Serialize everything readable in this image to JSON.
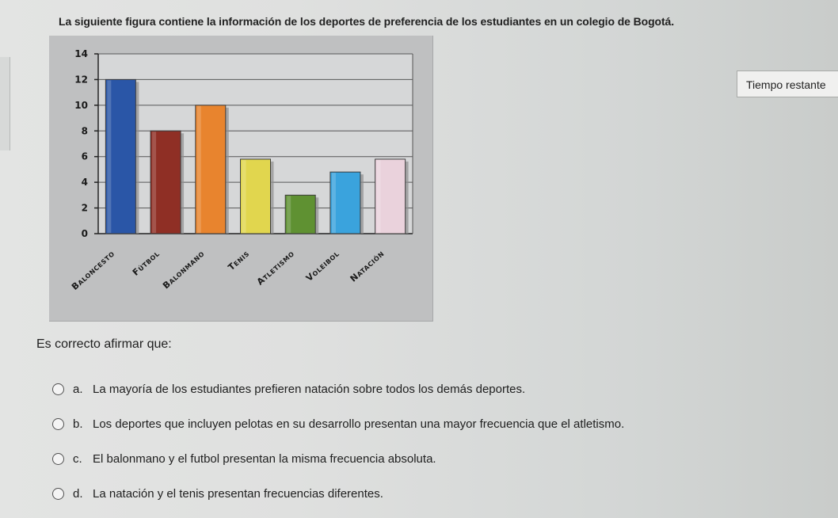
{
  "question": {
    "text": "La siguiente figura contiene la información de los deportes de preferencia de los estudiantes en un colegio de Bogotá."
  },
  "timer": {
    "label": "Tiempo restante"
  },
  "prompt": {
    "text": "Es correcto afirmar que:"
  },
  "options": [
    {
      "letter": "a.",
      "text": "La mayoría de los estudiantes prefieren natación sobre todos los demás deportes.",
      "selected": false
    },
    {
      "letter": "b.",
      "text": "Los deportes que incluyen pelotas en su desarrollo presentan una mayor frecuencia que el atletismo.",
      "selected": false
    },
    {
      "letter": "c.",
      "text": "El balonmano y el futbol presentan la misma frecuencia absoluta.",
      "selected": false
    },
    {
      "letter": "d.",
      "text": "La natación y el tenis presentan frecuencias diferentes.",
      "selected": false
    }
  ],
  "chart_data": {
    "type": "bar",
    "categories": [
      "Baloncesto",
      "Fútbol",
      "Balonmano",
      "Tenis",
      "Atletismo",
      "Voleibol",
      "Natación"
    ],
    "values": [
      12,
      8,
      10,
      5.8,
      3,
      4.8,
      5.8
    ],
    "colors": [
      "#2a56a7",
      "#8f2f25",
      "#e8842e",
      "#e1d64e",
      "#5f9132",
      "#3aa3dd",
      "#ead2dc"
    ],
    "yticks": [
      0,
      2,
      4,
      6,
      8,
      10,
      12,
      14
    ],
    "ylim": [
      0,
      14
    ],
    "grid": true,
    "legend": "none"
  }
}
